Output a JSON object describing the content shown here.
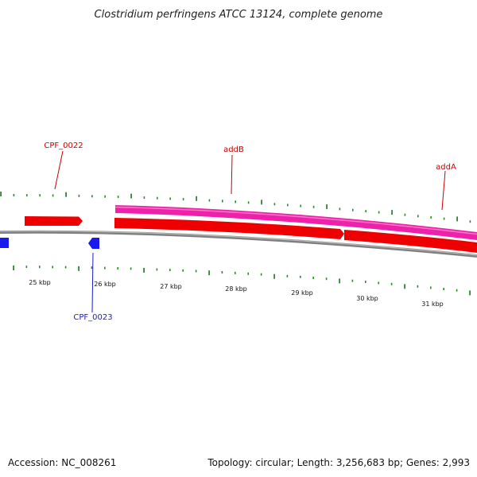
{
  "title": "Clostridium perfringens ATCC 13124, complete genome",
  "footer": {
    "accession": "Accession: NC_008261",
    "summary": "Topology: circular; Length: 3,256,683 bp; Genes: 2,993"
  },
  "colors": {
    "forward_gene": "#ee0000",
    "reverse_gene": "#1a1aee",
    "pink_track": "#ee22aa",
    "backbone": "#808080",
    "ticks": "#2a8a2a",
    "forward_label": "#cc0000",
    "reverse_label": "#1a1acc"
  },
  "tick_labels": [
    "25 kbp",
    "26 kbp",
    "27 kbp",
    "28 kbp",
    "29 kbp",
    "30 kbp",
    "31 kbp"
  ],
  "genes": [
    {
      "name": "CPF_0022",
      "strand": "forward"
    },
    {
      "name": "addB",
      "strand": "forward"
    },
    {
      "name": "addA",
      "strand": "forward"
    },
    {
      "name": "CPF_0023",
      "strand": "reverse"
    }
  ]
}
